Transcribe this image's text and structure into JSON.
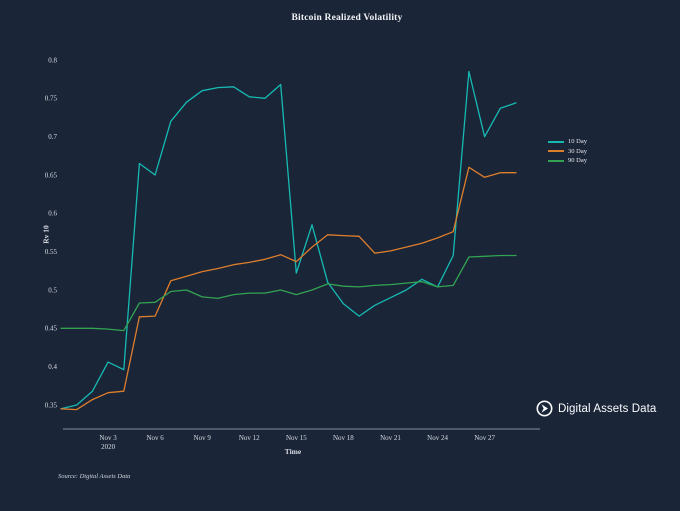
{
  "chart_data": {
    "type": "line",
    "title": "Bitcoin Realized Volatility",
    "xlabel": "Time",
    "ylabel": "Rv 10",
    "grid": false,
    "legend_position": "right",
    "background_color": "#1a2538",
    "axis_color": "#aeb4bf",
    "ylim": [
      0.35,
      0.8
    ],
    "y_ticks": [
      "0.8",
      "0.75",
      "0.7",
      "0.65",
      "0.6",
      "0.55",
      "0.5",
      "0.45",
      "0.4",
      "0.35"
    ],
    "x_tick_labels": [
      "Nov 3",
      "Nov 6",
      "Nov 9",
      "Nov 12",
      "Nov 15",
      "Nov 18",
      "Nov 21",
      "Nov 24",
      "Nov 27"
    ],
    "x_first_tick_year": "2020",
    "x": [
      "Oct 31",
      "Nov 1",
      "Nov 2",
      "Nov 3",
      "Nov 4",
      "Nov 5",
      "Nov 6",
      "Nov 7",
      "Nov 8",
      "Nov 9",
      "Nov 10",
      "Nov 11",
      "Nov 12",
      "Nov 13",
      "Nov 14",
      "Nov 15",
      "Nov 16",
      "Nov 17",
      "Nov 18",
      "Nov 19",
      "Nov 20",
      "Nov 21",
      "Nov 22",
      "Nov 23",
      "Nov 24",
      "Nov 25",
      "Nov 26",
      "Nov 27",
      "Nov 28",
      "Nov 29"
    ],
    "series": [
      {
        "name": "10 Day",
        "color": "#16bab3",
        "values": [
          0.345,
          0.35,
          0.368,
          0.406,
          0.396,
          0.665,
          0.65,
          0.72,
          0.745,
          0.76,
          0.764,
          0.765,
          0.752,
          0.75,
          0.768,
          0.522,
          0.585,
          0.51,
          0.482,
          0.466,
          0.48,
          0.49,
          0.5,
          0.514,
          0.504,
          0.545,
          0.785,
          0.7,
          0.737,
          0.744
        ]
      },
      {
        "name": "30 Day",
        "color": "#dd7e2b",
        "values": [
          0.345,
          0.344,
          0.357,
          0.366,
          0.368,
          0.465,
          0.466,
          0.512,
          0.518,
          0.524,
          0.528,
          0.533,
          0.536,
          0.54,
          0.546,
          0.537,
          0.556,
          0.572,
          0.571,
          0.57,
          0.548,
          0.551,
          0.556,
          0.561,
          0.568,
          0.576,
          0.66,
          0.647,
          0.653,
          0.653
        ]
      },
      {
        "name": "90 Day",
        "color": "#33a352",
        "values": [
          0.45,
          0.45,
          0.45,
          0.449,
          0.447,
          0.483,
          0.484,
          0.498,
          0.5,
          0.491,
          0.489,
          0.494,
          0.496,
          0.496,
          0.5,
          0.494,
          0.5,
          0.508,
          0.505,
          0.504,
          0.506,
          0.507,
          0.509,
          0.511,
          0.504,
          0.506,
          0.543,
          0.544,
          0.545,
          0.545
        ]
      }
    ]
  },
  "branding": {
    "logo_text": "Digital Assets Data",
    "source_note": "Source: Digital Assets Data"
  }
}
